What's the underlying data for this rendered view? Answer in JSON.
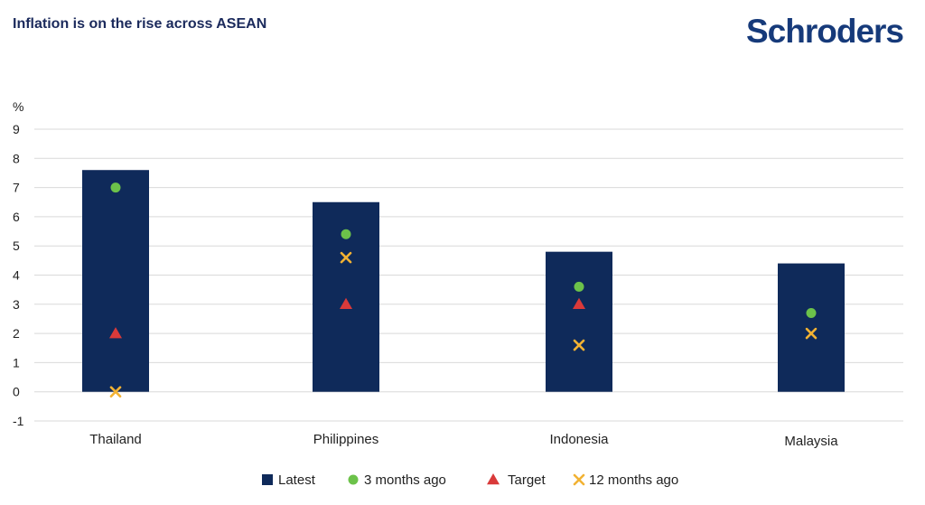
{
  "header": {
    "title": "Inflation is on the rise across ASEAN",
    "logo_text": "Schroders"
  },
  "chart_data": {
    "type": "bar",
    "title": "Inflation is on the rise across ASEAN",
    "ylabel": "%",
    "ylim": [
      -1,
      9
    ],
    "yticks": [
      -1,
      0,
      1,
      2,
      3,
      4,
      5,
      6,
      7,
      8,
      9
    ],
    "grid": true,
    "legend_position": "bottom",
    "categories": [
      "Thailand",
      "Philippines",
      "Indonesia",
      "Malaysia"
    ],
    "series": [
      {
        "name": "Latest",
        "type": "bar",
        "marker": "square",
        "color": "#0f2a5a",
        "values": [
          7.6,
          6.5,
          4.8,
          4.4
        ]
      },
      {
        "name": "3 months ago",
        "type": "scatter",
        "marker": "circle",
        "color": "#6cc24a",
        "values": [
          7.0,
          5.4,
          3.6,
          2.7
        ]
      },
      {
        "name": "Target",
        "type": "scatter",
        "marker": "triangle",
        "color": "#d93a3a",
        "values": [
          2.0,
          3.0,
          3.0,
          null
        ]
      },
      {
        "name": "12 months ago",
        "type": "scatter",
        "marker": "cross",
        "color": "#f2b233",
        "values": [
          0.0,
          4.6,
          1.6,
          2.0
        ]
      }
    ]
  }
}
